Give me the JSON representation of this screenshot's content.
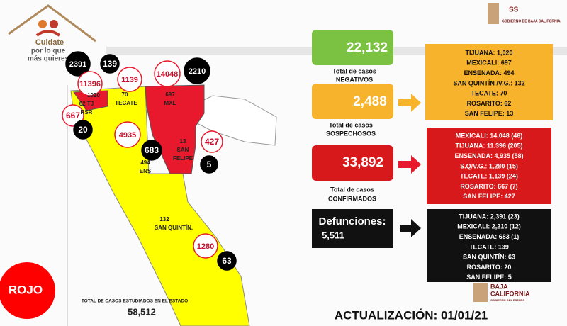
{
  "logo": {
    "title": "Cuidate",
    "line1": "por lo que",
    "line2": "más quieres"
  },
  "header": {
    "acronym": "SS",
    "org": "GOBIERNO DE BAJA CALIFORNIA"
  },
  "map": {
    "circles": [
      {
        "label": "2391",
        "kind": "deaths"
      },
      {
        "label": "139",
        "kind": "deaths"
      },
      {
        "label": "11396",
        "kind": "cases"
      },
      {
        "label": "1139",
        "kind": "cases"
      },
      {
        "label": "14048",
        "kind": "cases"
      },
      {
        "label": "2210",
        "kind": "deaths"
      },
      {
        "label": "667",
        "kind": "cases"
      },
      {
        "label": "20",
        "kind": "deaths"
      },
      {
        "label": "4935",
        "kind": "cases"
      },
      {
        "label": "683",
        "kind": "deaths"
      },
      {
        "label": "427",
        "kind": "cases"
      },
      {
        "label": "5",
        "kind": "deaths"
      },
      {
        "label": "1280",
        "kind": "cases"
      },
      {
        "label": "63",
        "kind": "deaths"
      }
    ],
    "labels": [
      "1020",
      "62 TJ",
      "RSR",
      "70",
      "TECATE",
      "697",
      "MXL",
      "13",
      "SAN",
      "FELIPE",
      "494",
      "ENS",
      "132",
      "SAN QUINTÍN."
    ]
  },
  "status": "ROJO",
  "studied": {
    "label": "TOTAL DE CASOS ESTUDIADOS EN EL ESTADO",
    "value": "58,512"
  },
  "negatives": {
    "value": "22,132",
    "line1": "Total de casos",
    "line2": "NEGATIVOS"
  },
  "suspects": {
    "value": "2,488",
    "line1": "Total de casos",
    "line2": "SOSPECHOSOS",
    "list": [
      "TIJUANA: 1,020",
      "MEXICALI: 697",
      "ENSENADA: 494",
      "SAN QUINTÍN /V.G.: 132",
      "TECATE: 70",
      "ROSARITO: 62",
      "SAN FELIPE: 13"
    ]
  },
  "confirmed": {
    "value": "33,892",
    "line1": "Total de casos",
    "line2": "CONFIRMADOS",
    "list": [
      "MEXICALI: 14,048 (46)",
      "TIJUANA: 11.396 (205)",
      "ENSENADA: 4,935 (58)",
      "S.Q/V.G.: 1,280 (15)",
      "TECATE: 1,139 (24)",
      "ROSARITO: 667 (7)",
      "SAN FELIPE: 427"
    ]
  },
  "deaths": {
    "label": "Defunciones:",
    "value": "5,511",
    "list": [
      "TIJUANA: 2,391 (23)",
      "MEXICALI: 2,210 (12)",
      "ENSENADA: 683 (1)",
      "TECATE: 139",
      "SAN QUINTÍN: 63",
      "ROSARITO: 20",
      "SAN FELIPE: 5"
    ]
  },
  "footer_logo": {
    "line1": "BAJA",
    "line2": "CALIFORNIA",
    "line3": "GOBIERNO DEL ESTADO"
  },
  "update": "ACTUALIZACIÓN: 01/01/21"
}
